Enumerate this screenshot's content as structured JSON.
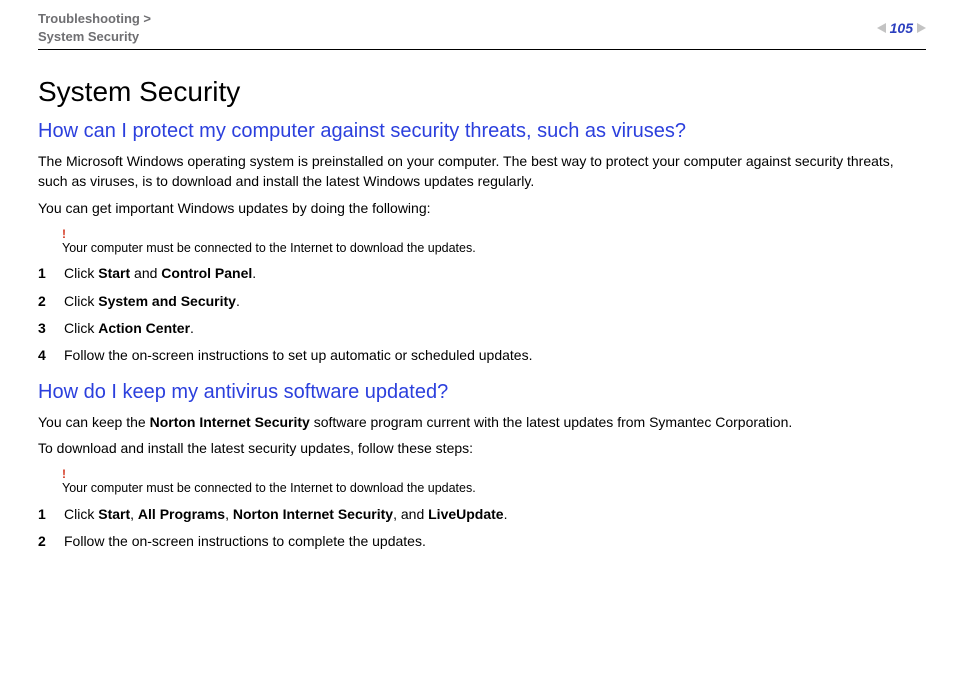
{
  "header": {
    "breadcrumb_line1": "Troubleshooting >",
    "breadcrumb_line2": "System Security",
    "page_number": "105"
  },
  "colors": {
    "heading_blue": "#2b3fdd",
    "page_number_blue": "#2b3fbf",
    "breadcrumb_grey": "#6f6f72",
    "bang_red": "#d43a24",
    "hr": "#000000",
    "arrow_grey": "#c3c3c3"
  },
  "title": "System Security",
  "section1": {
    "heading": "How can I protect my computer against security threats, such as viruses?",
    "para1": "The Microsoft Windows operating system is preinstalled on your computer. The best way to protect your computer against security threats, such as viruses, is to download and install the latest Windows updates regularly.",
    "para2": "You can get important Windows updates by doing the following:",
    "note_bang": "!",
    "note_text": "Your computer must be connected to the Internet to download the updates.",
    "steps": [
      {
        "num": "1",
        "prefix": "Click ",
        "bold1": "Start",
        "mid1": " and ",
        "bold2": "Control Panel",
        "suffix": "."
      },
      {
        "num": "2",
        "prefix": "Click ",
        "bold1": "System and Security",
        "suffix": "."
      },
      {
        "num": "3",
        "prefix": "Click ",
        "bold1": "Action Center",
        "suffix": "."
      },
      {
        "num": "4",
        "plain": "Follow the on-screen instructions to set up automatic or scheduled updates."
      }
    ]
  },
  "section2": {
    "heading": "How do I keep my antivirus software updated?",
    "para1_pre": "You can keep the ",
    "para1_bold": "Norton Internet Security",
    "para1_post": " software program current with the latest updates from Symantec Corporation.",
    "para2": "To download and install the latest security updates, follow these steps:",
    "note_bang": "!",
    "note_text": "Your computer must be connected to the Internet to download the updates.",
    "steps": [
      {
        "num": "1",
        "prefix": "Click ",
        "bold1": "Start",
        "sep1": ", ",
        "bold2": "All Programs",
        "sep2": ", ",
        "bold3": "Norton Internet Security",
        "sep3": ", and ",
        "bold4": "LiveUpdate",
        "suffix": "."
      },
      {
        "num": "2",
        "plain": "Follow the on-screen instructions to complete the updates."
      }
    ]
  }
}
